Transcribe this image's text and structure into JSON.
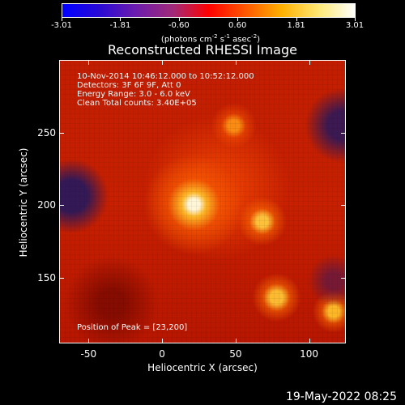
{
  "colorbar": {
    "gradient": [
      "#0000ff",
      "#2a0ad3",
      "#6b1cad",
      "#a12a77",
      "#ff0000",
      "#ff5a00",
      "#ffb000",
      "#ffe978",
      "#ffffff"
    ],
    "tick_labels": [
      "-3.01",
      "-1.81",
      "-0.60",
      "0.60",
      "1.81",
      "3.01"
    ]
  },
  "colorbar_units": {
    "parts": [
      "(photons cm",
      "-2",
      " s",
      "-1",
      " asec",
      "-2",
      ")"
    ]
  },
  "title": "Reconstructed RHESSI Image",
  "info": {
    "time_range": "10-Nov-2014 10:46:12.000 to 10:52:12.000",
    "detectors": "Detectors: 3F 6F 9F, Att 0",
    "energy_range": "Energy Range: 3.0 - 6.0 keV",
    "clean_total_counts": "Clean     Total counts: 3.40E+05",
    "peak_position": "Position of Peak = [23,200]"
  },
  "chart_data": {
    "type": "heatmap",
    "title": "Reconstructed RHESSI Image",
    "xlabel": "Heliocentric X (arcsec)",
    "ylabel": "Heliocentric Y (arcsec)",
    "xlim": [
      -70,
      125
    ],
    "ylim": [
      105,
      300
    ],
    "x_ticks": [
      -50,
      0,
      50,
      100
    ],
    "y_ticks": [
      150,
      200,
      250
    ],
    "x_tick_labels": [
      "-50",
      "0",
      "50",
      "100"
    ],
    "y_tick_labels": [
      "150",
      "200",
      "250"
    ],
    "colorbar_range": [
      -3.01,
      3.01
    ],
    "peak": [
      23,
      200
    ]
  },
  "footer": {
    "timestamp": "19-May-2022 08:25"
  },
  "colors": {
    "background": "#000000",
    "axes": "#ffffff",
    "text": "#ffffff"
  }
}
